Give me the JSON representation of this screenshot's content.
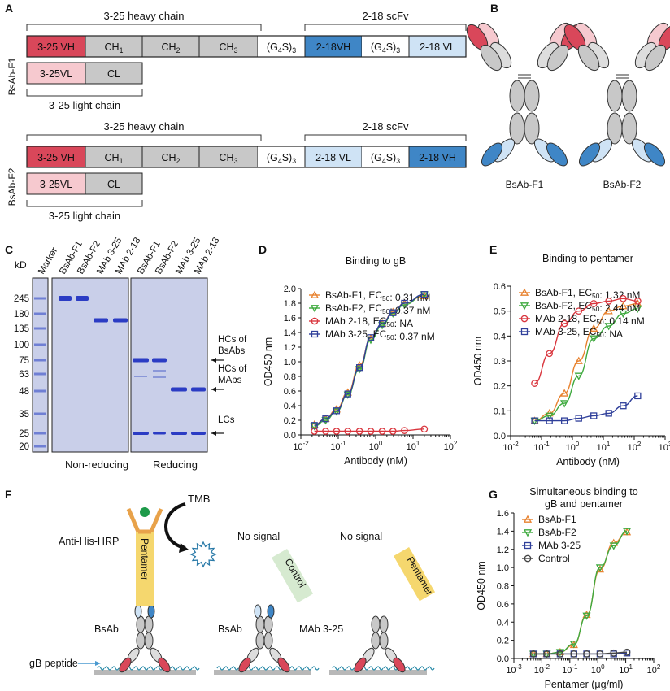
{
  "colors": {
    "red": "#d9475a",
    "pink": "#f6c9cf",
    "grey": "#c8c8c8",
    "blue": "#3f86c6",
    "lightblue": "#cfe3f5",
    "orange": "#e8822f",
    "green": "#3faa3f",
    "darkred": "#d9363e",
    "navy": "#2f3f9a",
    "gel": "#c9cfe9",
    "band": "#2b3cc4"
  },
  "panel_labels": [
    "A",
    "B",
    "C",
    "D",
    "E",
    "F",
    "G"
  ],
  "panelA": {
    "rows": [
      {
        "row_label": "BsAb-F1",
        "heavy_label": "3-25 heavy chain",
        "scfv_label": "2-18 scFv",
        "heavy": [
          "3-25 VH",
          "CH1",
          "CH2",
          "CH3",
          "(G4S)3",
          "2-18VH",
          "(G4S)3",
          "2-18 VL"
        ],
        "light": [
          "3-25VL",
          "CL"
        ],
        "light_label": "3-25 light chain"
      },
      {
        "row_label": "BsAb-F2",
        "heavy_label": "3-25 heavy chain",
        "scfv_label": "2-18 scFv",
        "heavy": [
          "3-25 VH",
          "CH1",
          "CH2",
          "CH3",
          "(G4S)3",
          "2-18 VL",
          "(G4S)3",
          "2-18 VH"
        ],
        "light": [
          "3-25VL",
          "CL"
        ],
        "light_label": "3-25 light chain"
      }
    ]
  },
  "panelB": {
    "labels": [
      "BsAb-F1",
      "BsAb-F2"
    ]
  },
  "panelC": {
    "kd_label": "kD",
    "markers": [
      "245",
      "180",
      "135",
      "100",
      "75",
      "63",
      "48",
      "35",
      "25",
      "20"
    ],
    "lanes": [
      "Marker",
      "BsAb-F1",
      "BsAb-F2",
      "MAb 3-25",
      "MAb 2-18",
      "BsAb-F1",
      "BsAb-F2",
      "MAb 3-25",
      "MAb 2-18"
    ],
    "cond_nonred": "Non-reducing",
    "cond_red": "Reducing",
    "annotations": [
      "HCs of BsAbs",
      "HCs of MAbs",
      "LCs"
    ]
  },
  "panelF": {
    "labels": {
      "tmb": "TMB",
      "hrp": "Anti-His-HRP",
      "pentamer": "Pentamer",
      "bsab": "BsAb",
      "gb": "gB peptide",
      "nosignal": "No signal",
      "control": "Control",
      "mab": "MAb 3-25"
    }
  },
  "chart_data": [
    {
      "panel": "D",
      "type": "line",
      "title": "Binding to gB",
      "xlabel": "Antibody (nM)",
      "ylabel": "OD450 nm",
      "xscale": "log",
      "xlim": [
        0.01,
        100
      ],
      "ylim": [
        0,
        2.0
      ],
      "xticks": [
        "10-2",
        "10-1",
        "100",
        "101",
        "102"
      ],
      "yticks": [
        "0.0",
        "0.2",
        "0.4",
        "0.6",
        "0.8",
        "1.0",
        "1.2",
        "1.4",
        "1.6",
        "1.8",
        "2.0"
      ],
      "legend_position": "top-left",
      "series": [
        {
          "name": "BsAb-F1, EC50: 0.31 nM",
          "color": "#e8822f",
          "marker": "triangle-up",
          "x": [
            0.023,
            0.046,
            0.09,
            0.18,
            0.37,
            0.74,
            1.5,
            2.9,
            5.9,
            20
          ],
          "y": [
            0.14,
            0.22,
            0.35,
            0.58,
            0.95,
            1.32,
            1.52,
            1.68,
            1.8,
            1.9
          ]
        },
        {
          "name": "BsAb-F2, EC50: 0.37 nM",
          "color": "#3faa3f",
          "marker": "triangle-down",
          "x": [
            0.023,
            0.046,
            0.09,
            0.18,
            0.37,
            0.74,
            1.5,
            2.9,
            5.9,
            20
          ],
          "y": [
            0.12,
            0.2,
            0.32,
            0.55,
            0.9,
            1.3,
            1.5,
            1.66,
            1.78,
            1.92
          ]
        },
        {
          "name": "MAb 2-18, EC50: NA",
          "color": "#d9363e",
          "marker": "circle",
          "x": [
            0.023,
            0.046,
            0.09,
            0.18,
            0.37,
            0.74,
            1.5,
            2.9,
            5.9,
            20
          ],
          "y": [
            0.05,
            0.05,
            0.05,
            0.05,
            0.05,
            0.05,
            0.05,
            0.05,
            0.06,
            0.08
          ]
        },
        {
          "name": "MAb 3-25, EC50: 0.37 nM",
          "color": "#2f3f9a",
          "marker": "square",
          "x": [
            0.023,
            0.046,
            0.09,
            0.18,
            0.37,
            0.74,
            1.5,
            2.9,
            5.9,
            20
          ],
          "y": [
            0.13,
            0.22,
            0.33,
            0.56,
            0.92,
            1.33,
            1.52,
            1.67,
            1.8,
            1.92
          ]
        }
      ]
    },
    {
      "panel": "E",
      "type": "line",
      "title": "Binding to pentamer",
      "xlabel": "Antibody (nM)",
      "ylabel": "OD450 nm",
      "xscale": "log",
      "xlim": [
        0.01,
        1000
      ],
      "ylim": [
        0,
        0.6
      ],
      "xticks": [
        "10-2",
        "10-1",
        "100",
        "101",
        "102",
        "103"
      ],
      "yticks": [
        "0.0",
        "0.1",
        "0.2",
        "0.3",
        "0.4",
        "0.5",
        "0.6"
      ],
      "legend_position": "top-left",
      "series": [
        {
          "name": "BsAb-F1, EC50: 1.32 nM",
          "color": "#e8822f",
          "marker": "triangle-up",
          "x": [
            0.06,
            0.18,
            0.55,
            1.6,
            4.9,
            15,
            44,
            130
          ],
          "y": [
            0.06,
            0.09,
            0.17,
            0.3,
            0.43,
            0.5,
            0.52,
            0.53
          ]
        },
        {
          "name": "BsAb-F2, EC50: 2.44 nM",
          "color": "#3faa3f",
          "marker": "triangle-down",
          "x": [
            0.06,
            0.18,
            0.55,
            1.6,
            4.9,
            15,
            44,
            130
          ],
          "y": [
            0.06,
            0.08,
            0.13,
            0.24,
            0.39,
            0.44,
            0.49,
            0.51
          ]
        },
        {
          "name": "MAb 2-18, EC50: 0.14 nM",
          "color": "#d9363e",
          "marker": "circle",
          "x": [
            0.06,
            0.18,
            0.55,
            1.6,
            4.9,
            15,
            44,
            130
          ],
          "y": [
            0.21,
            0.33,
            0.45,
            0.5,
            0.53,
            0.54,
            0.55,
            0.54
          ]
        },
        {
          "name": "MAb 3-25, EC50: NA",
          "color": "#2f3f9a",
          "marker": "square",
          "x": [
            0.06,
            0.18,
            0.55,
            1.6,
            4.9,
            15,
            44,
            130
          ],
          "y": [
            0.06,
            0.06,
            0.06,
            0.07,
            0.08,
            0.09,
            0.12,
            0.16
          ]
        }
      ]
    },
    {
      "panel": "G",
      "type": "line",
      "title": "Simultaneous binding to gB and pentamer",
      "title_lines": [
        "Simultaneous binding to",
        "gB and pentamer"
      ],
      "xlabel": "Pentamer (μg/ml)",
      "ylabel": "OD450 nm",
      "xscale": "log",
      "xlim": [
        0.001,
        100
      ],
      "ylim": [
        0,
        1.6
      ],
      "xticks": [
        "10-3",
        "10-2",
        "10-1",
        "100",
        "101",
        "102"
      ],
      "yticks": [
        "0.0",
        "0.2",
        "0.4",
        "0.6",
        "0.8",
        "1.0",
        "1.2",
        "1.4",
        "1.6"
      ],
      "legend_position": "top-left",
      "series": [
        {
          "name": "BsAb-F1",
          "color": "#e8822f",
          "marker": "triangle-up",
          "x": [
            0.005,
            0.015,
            0.045,
            0.14,
            0.4,
            1.2,
            3.7,
            11
          ],
          "y": [
            0.05,
            0.05,
            0.07,
            0.15,
            0.48,
            0.98,
            1.27,
            1.39
          ]
        },
        {
          "name": "BsAb-F2",
          "color": "#3faa3f",
          "marker": "triangle-down",
          "x": [
            0.005,
            0.015,
            0.045,
            0.14,
            0.4,
            1.2,
            3.7,
            11
          ],
          "y": [
            0.05,
            0.05,
            0.07,
            0.16,
            0.47,
            1.0,
            1.24,
            1.4
          ]
        },
        {
          "name": "MAb 3-25",
          "color": "#2f3f9a",
          "marker": "square",
          "x": [
            0.005,
            0.015,
            0.045,
            0.14,
            0.4,
            1.2,
            3.7,
            11
          ],
          "y": [
            0.05,
            0.05,
            0.05,
            0.05,
            0.05,
            0.05,
            0.05,
            0.06
          ]
        },
        {
          "name": "Control",
          "color": "#444444",
          "marker": "circle-open",
          "x": [
            0.005,
            0.015,
            0.045,
            0.14,
            0.4,
            1.2,
            3.7,
            11
          ],
          "y": [
            0.05,
            0.05,
            0.05,
            0.05,
            0.05,
            0.05,
            0.06,
            0.07
          ]
        }
      ]
    }
  ]
}
